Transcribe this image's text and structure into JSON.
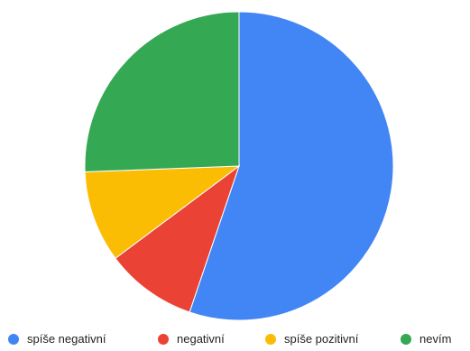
{
  "chart_data": {
    "type": "pie",
    "title": "",
    "start": "top",
    "direction": "clockwise",
    "legend_position": "bottom",
    "slices": [
      {
        "label": "spíše negativní",
        "value": 55.2,
        "color": "#4285F4"
      },
      {
        "label": "negativní",
        "value": 9.6,
        "color": "#EA4335"
      },
      {
        "label": "spíše pozitivní",
        "value": 9.6,
        "color": "#FBBC04"
      },
      {
        "label": "nevím",
        "value": 25.6,
        "color": "#34A853"
      }
    ]
  }
}
